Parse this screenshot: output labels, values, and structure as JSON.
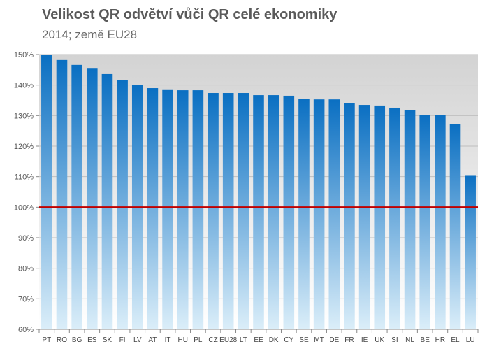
{
  "chart_data": {
    "type": "bar",
    "title": "Velikost QR odvětví vůči QR celé ekonomiky",
    "subtitle": "2014; země EU28",
    "categories": [
      "PT",
      "RO",
      "BG",
      "ES",
      "SK",
      "FI",
      "LV",
      "AT",
      "IT",
      "HU",
      "PL",
      "CZ",
      "EU28",
      "LT",
      "EE",
      "DK",
      "CY",
      "SE",
      "MT",
      "DE",
      "FR",
      "IE",
      "UK",
      "SI",
      "NL",
      "BE",
      "HR",
      "EL",
      "LU"
    ],
    "values": [
      150.0,
      148.2,
      146.6,
      145.6,
      143.6,
      141.6,
      140.1,
      139.0,
      138.6,
      138.3,
      138.3,
      137.4,
      137.4,
      137.4,
      136.7,
      136.7,
      136.5,
      135.5,
      135.3,
      135.3,
      134.0,
      133.5,
      133.3,
      132.6,
      131.9,
      130.3,
      130.3,
      127.3,
      110.5
    ],
    "ylim": [
      60,
      150
    ],
    "yticks": [
      60,
      70,
      80,
      90,
      100,
      110,
      120,
      130,
      140,
      150
    ],
    "ytick_labels": [
      "60%",
      "70%",
      "80%",
      "90%",
      "100%",
      "110%",
      "120%",
      "130%",
      "140%",
      "150%"
    ],
    "reference_line": {
      "value": 100,
      "color": "#c00000"
    },
    "grid": true,
    "legend": "none",
    "colors": {
      "bar_top": "#0a6fc2",
      "bar_bottom": "#dbeef9",
      "plot_bg_top": "#d3d3d3",
      "plot_bg_bottom": "#ffffff",
      "grid": "#bfbfbf"
    }
  }
}
